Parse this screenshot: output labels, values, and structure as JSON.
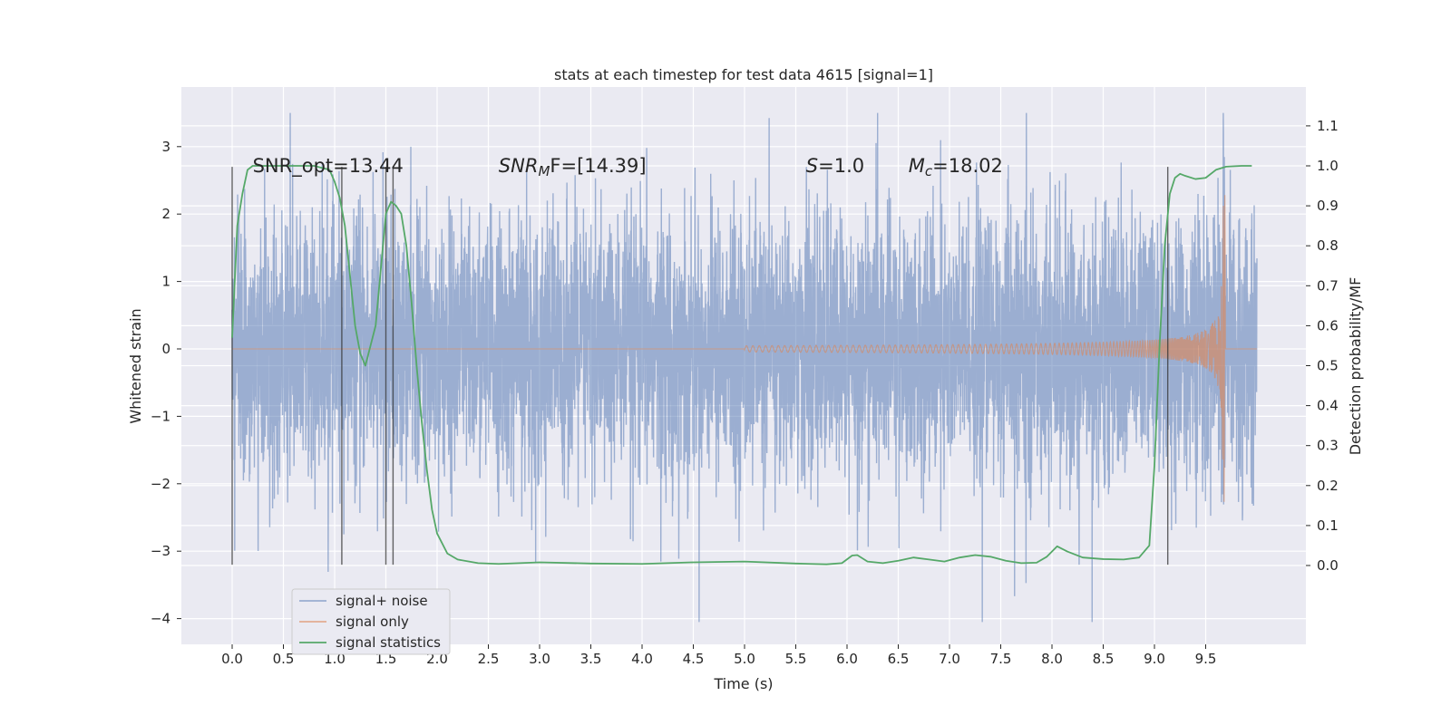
{
  "chart_data": {
    "type": "line",
    "title": "stats at each timestep for test data 4615 [signal=1]",
    "xlabel": "Time (s)",
    "ylabel": "Whitened strain",
    "y2label": "Detection probability/MF",
    "xlim": [
      -0.5,
      10.5
    ],
    "ylim": [
      -4.45,
      3.8
    ],
    "y2lim": [
      -0.2,
      1.2
    ],
    "xticks": [
      0.0,
      0.5,
      1.0,
      1.5,
      2.0,
      2.5,
      3.0,
      3.5,
      4.0,
      4.5,
      5.0,
      5.5,
      6.0,
      6.5,
      7.0,
      7.5,
      8.0,
      8.5,
      9.0,
      9.5
    ],
    "yticks": [
      3,
      2,
      1,
      0,
      -1,
      -2,
      -3,
      -4
    ],
    "y2ticks": [
      1.1,
      1.0,
      0.9,
      0.8,
      0.7,
      0.6,
      0.5,
      0.4,
      0.3,
      0.2,
      0.1,
      0.0
    ],
    "grid": true,
    "legend_position": "lower-left",
    "annotations": [
      {
        "text": "SNR_opt=13.44",
        "x": 0.2
      },
      {
        "text": "SNR",
        "sub": "M",
        "tail": "F=[14.39]",
        "italic": true,
        "x": 2.6
      },
      {
        "text": "S",
        "tail": "=1.0",
        "italic": true,
        "x": 5.6
      },
      {
        "text": "M",
        "sub": "c",
        "tail": "=18.02",
        "italic": true,
        "x": 6.6
      }
    ],
    "vlines": [
      0.0,
      1.07,
      1.5,
      1.57,
      9.13
    ],
    "series": [
      {
        "name": "signal+ noise",
        "color": "#4c72b0",
        "envelope": {
          "t_end": 10.0,
          "amp_typical": 1.6,
          "max": 3.5,
          "min": -4.05
        }
      },
      {
        "name": "signal only",
        "color": "#dd8452",
        "chirp": {
          "t_start": 5.0,
          "t_merger": 9.67,
          "peak": 2.35,
          "trough": -2.2
        }
      },
      {
        "name": "signal statistics",
        "color": "#55a868",
        "axis": "right",
        "x": [
          0.0,
          0.05,
          0.1,
          0.15,
          0.2,
          0.3,
          0.5,
          0.8,
          0.95,
          1.0,
          1.05,
          1.1,
          1.2,
          1.25,
          1.3,
          1.4,
          1.5,
          1.55,
          1.6,
          1.65,
          1.7,
          1.75,
          1.8,
          1.85,
          1.9,
          1.95,
          2.0,
          2.1,
          2.2,
          2.4,
          2.6,
          3.0,
          3.5,
          4.0,
          4.5,
          5.0,
          5.5,
          5.8,
          5.95,
          6.05,
          6.1,
          6.2,
          6.35,
          6.5,
          6.65,
          6.8,
          6.95,
          7.1,
          7.25,
          7.4,
          7.55,
          7.7,
          7.85,
          7.95,
          8.05,
          8.15,
          8.3,
          8.5,
          8.7,
          8.85,
          8.95,
          9.0,
          9.05,
          9.1,
          9.15,
          9.2,
          9.25,
          9.3,
          9.4,
          9.5,
          9.6,
          9.7,
          9.85,
          9.95
        ],
        "values": [
          0.57,
          0.85,
          0.93,
          0.99,
          1.0,
          1.0,
          1.0,
          1.0,
          0.99,
          0.96,
          0.92,
          0.85,
          0.6,
          0.53,
          0.5,
          0.6,
          0.88,
          0.91,
          0.9,
          0.88,
          0.8,
          0.66,
          0.5,
          0.36,
          0.24,
          0.14,
          0.08,
          0.03,
          0.015,
          0.006,
          0.004,
          0.008,
          0.005,
          0.004,
          0.008,
          0.01,
          0.005,
          0.003,
          0.006,
          0.025,
          0.026,
          0.01,
          0.006,
          0.012,
          0.02,
          0.015,
          0.01,
          0.02,
          0.026,
          0.022,
          0.012,
          0.006,
          0.007,
          0.022,
          0.048,
          0.035,
          0.02,
          0.016,
          0.015,
          0.02,
          0.05,
          0.25,
          0.55,
          0.8,
          0.93,
          0.97,
          0.98,
          0.975,
          0.967,
          0.97,
          0.99,
          0.998,
          1.0,
          1.0
        ]
      }
    ]
  }
}
